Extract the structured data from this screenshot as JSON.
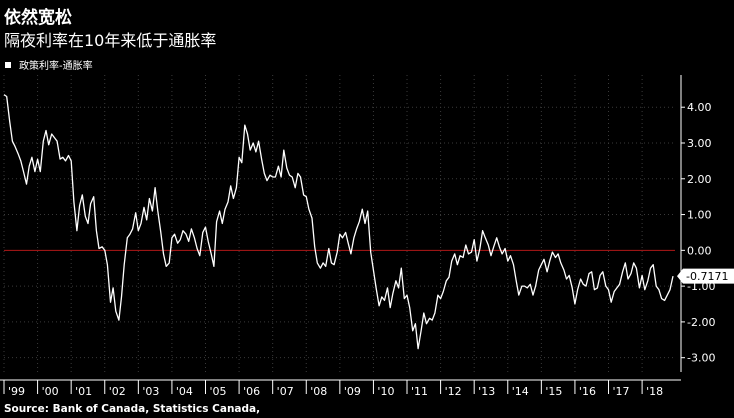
{
  "title": "依然宽松",
  "subtitle": "隔夜利率在10年来低于通胀率",
  "legend_label": "政策利率-通胀率",
  "source": "Source: Bank of Canada, Statistics Canada,",
  "colors": {
    "background": "#000000",
    "line": "#ffffff",
    "zero_line": "#b01818",
    "grid": "#3a3a3a",
    "label_box": "#ffffff"
  },
  "chart_data": {
    "type": "line",
    "title": "依然宽松",
    "subtitle": "隔夜利率在10年来低于通胀率",
    "xlabel": "",
    "ylabel": "",
    "x_ticks": [
      "'99",
      "'00",
      "'01",
      "'02",
      "'03",
      "'04",
      "'05",
      "'06",
      "'07",
      "'08",
      "'09",
      "'10",
      "'11",
      "'12",
      "'13",
      "'14",
      "'15",
      "'16",
      "'17",
      "'18"
    ],
    "y_ticks": [
      "4.00",
      "3.00",
      "2.00",
      "1.00",
      "0.00",
      "-1.00",
      "-2.00",
      "-3.00"
    ],
    "y_tick_values": [
      4,
      3,
      2,
      1,
      0,
      -1,
      -2,
      -3
    ],
    "ylim": [
      -3.4,
      4.9
    ],
    "xlim": [
      1999.0,
      2018.92
    ],
    "zero_line": true,
    "y_axis_position": "right",
    "last_value_label": "-0.7171",
    "series": [
      {
        "name": "政策利率-通胀率",
        "points": [
          [
            1999.0,
            4.35
          ],
          [
            1999.08,
            4.3
          ],
          [
            1999.17,
            3.6
          ],
          [
            1999.25,
            3.05
          ],
          [
            1999.33,
            2.9
          ],
          [
            1999.42,
            2.7
          ],
          [
            1999.5,
            2.5
          ],
          [
            1999.58,
            2.2
          ],
          [
            1999.67,
            1.85
          ],
          [
            1999.75,
            2.35
          ],
          [
            1999.83,
            2.6
          ],
          [
            1999.92,
            2.2
          ],
          [
            2000.0,
            2.55
          ],
          [
            2000.08,
            2.2
          ],
          [
            2000.17,
            3.05
          ],
          [
            2000.25,
            3.35
          ],
          [
            2000.33,
            2.95
          ],
          [
            2000.42,
            3.25
          ],
          [
            2000.5,
            3.15
          ],
          [
            2000.58,
            3.05
          ],
          [
            2000.67,
            2.55
          ],
          [
            2000.75,
            2.6
          ],
          [
            2000.83,
            2.5
          ],
          [
            2000.92,
            2.65
          ],
          [
            2001.0,
            2.5
          ],
          [
            2001.08,
            1.35
          ],
          [
            2001.17,
            0.55
          ],
          [
            2001.25,
            1.25
          ],
          [
            2001.33,
            1.55
          ],
          [
            2001.42,
            0.95
          ],
          [
            2001.5,
            0.75
          ],
          [
            2001.58,
            1.3
          ],
          [
            2001.67,
            1.5
          ],
          [
            2001.75,
            0.55
          ],
          [
            2001.83,
            0.05
          ],
          [
            2001.92,
            0.1
          ],
          [
            2002.0,
            0.0
          ],
          [
            2002.08,
            -0.4
          ],
          [
            2002.17,
            -1.45
          ],
          [
            2002.25,
            -1.05
          ],
          [
            2002.33,
            -1.7
          ],
          [
            2002.42,
            -1.95
          ],
          [
            2002.5,
            -1.3
          ],
          [
            2002.58,
            -0.4
          ],
          [
            2002.67,
            0.35
          ],
          [
            2002.75,
            0.45
          ],
          [
            2002.83,
            0.6
          ],
          [
            2002.92,
            1.05
          ],
          [
            2003.0,
            0.55
          ],
          [
            2003.08,
            0.75
          ],
          [
            2003.17,
            1.2
          ],
          [
            2003.25,
            0.85
          ],
          [
            2003.33,
            1.45
          ],
          [
            2003.42,
            1.1
          ],
          [
            2003.5,
            1.75
          ],
          [
            2003.58,
            1.1
          ],
          [
            2003.67,
            0.5
          ],
          [
            2003.75,
            -0.1
          ],
          [
            2003.83,
            -0.45
          ],
          [
            2003.92,
            -0.35
          ],
          [
            2004.0,
            0.35
          ],
          [
            2004.08,
            0.45
          ],
          [
            2004.17,
            0.2
          ],
          [
            2004.25,
            0.3
          ],
          [
            2004.33,
            0.55
          ],
          [
            2004.42,
            0.45
          ],
          [
            2004.5,
            0.25
          ],
          [
            2004.58,
            0.6
          ],
          [
            2004.67,
            0.35
          ],
          [
            2004.75,
            0.05
          ],
          [
            2004.83,
            -0.15
          ],
          [
            2004.92,
            0.5
          ],
          [
            2005.0,
            0.65
          ],
          [
            2005.08,
            0.25
          ],
          [
            2005.17,
            -0.1
          ],
          [
            2005.25,
            -0.45
          ],
          [
            2005.33,
            0.8
          ],
          [
            2005.42,
            1.1
          ],
          [
            2005.5,
            0.75
          ],
          [
            2005.58,
            1.15
          ],
          [
            2005.67,
            1.35
          ],
          [
            2005.75,
            1.8
          ],
          [
            2005.83,
            1.45
          ],
          [
            2005.92,
            1.75
          ],
          [
            2006.0,
            2.6
          ],
          [
            2006.08,
            2.45
          ],
          [
            2006.17,
            3.5
          ],
          [
            2006.25,
            3.25
          ],
          [
            2006.33,
            2.8
          ],
          [
            2006.42,
            3.0
          ],
          [
            2006.5,
            2.75
          ],
          [
            2006.58,
            3.05
          ],
          [
            2006.67,
            2.55
          ],
          [
            2006.75,
            2.15
          ],
          [
            2006.83,
            1.95
          ],
          [
            2006.92,
            2.1
          ],
          [
            2007.0,
            2.05
          ],
          [
            2007.08,
            2.05
          ],
          [
            2007.17,
            2.35
          ],
          [
            2007.25,
            2.05
          ],
          [
            2007.33,
            2.8
          ],
          [
            2007.42,
            2.3
          ],
          [
            2007.5,
            2.1
          ],
          [
            2007.58,
            2.05
          ],
          [
            2007.67,
            1.75
          ],
          [
            2007.75,
            2.15
          ],
          [
            2007.83,
            2.05
          ],
          [
            2007.92,
            1.55
          ],
          [
            2008.0,
            1.5
          ],
          [
            2008.08,
            1.15
          ],
          [
            2008.17,
            0.9
          ],
          [
            2008.25,
            0.1
          ],
          [
            2008.33,
            -0.35
          ],
          [
            2008.42,
            -0.5
          ],
          [
            2008.5,
            -0.35
          ],
          [
            2008.58,
            -0.45
          ],
          [
            2008.67,
            0.05
          ],
          [
            2008.75,
            -0.35
          ],
          [
            2008.83,
            -0.4
          ],
          [
            2008.92,
            -0.05
          ],
          [
            2009.0,
            0.45
          ],
          [
            2009.08,
            0.35
          ],
          [
            2009.17,
            0.5
          ],
          [
            2009.25,
            0.2
          ],
          [
            2009.33,
            -0.1
          ],
          [
            2009.42,
            0.35
          ],
          [
            2009.5,
            0.6
          ],
          [
            2009.58,
            0.8
          ],
          [
            2009.67,
            1.15
          ],
          [
            2009.75,
            0.75
          ],
          [
            2009.83,
            1.1
          ],
          [
            2009.92,
            -0.05
          ],
          [
            2010.0,
            -0.55
          ],
          [
            2010.08,
            -1.05
          ],
          [
            2010.17,
            -1.55
          ],
          [
            2010.25,
            -1.3
          ],
          [
            2010.33,
            -1.4
          ],
          [
            2010.42,
            -1.05
          ],
          [
            2010.5,
            -1.6
          ],
          [
            2010.58,
            -1.2
          ],
          [
            2010.67,
            -0.85
          ],
          [
            2010.75,
            -1.05
          ],
          [
            2010.83,
            -0.5
          ],
          [
            2010.92,
            -1.35
          ],
          [
            2011.0,
            -1.25
          ],
          [
            2011.08,
            -1.6
          ],
          [
            2011.17,
            -2.25
          ],
          [
            2011.25,
            -2.05
          ],
          [
            2011.33,
            -2.75
          ],
          [
            2011.42,
            -2.25
          ],
          [
            2011.5,
            -1.75
          ],
          [
            2011.58,
            -2.05
          ],
          [
            2011.67,
            -1.9
          ],
          [
            2011.75,
            -1.95
          ],
          [
            2011.83,
            -1.75
          ],
          [
            2011.92,
            -1.25
          ],
          [
            2012.0,
            -1.35
          ],
          [
            2012.08,
            -1.15
          ],
          [
            2012.17,
            -0.85
          ],
          [
            2012.25,
            -0.75
          ],
          [
            2012.33,
            -0.3
          ],
          [
            2012.42,
            -0.1
          ],
          [
            2012.5,
            -0.4
          ],
          [
            2012.58,
            -0.15
          ],
          [
            2012.67,
            -0.2
          ],
          [
            2012.75,
            0.15
          ],
          [
            2012.83,
            -0.1
          ],
          [
            2012.92,
            -0.05
          ],
          [
            2013.0,
            0.3
          ],
          [
            2013.08,
            -0.3
          ],
          [
            2013.17,
            0.05
          ],
          [
            2013.25,
            0.55
          ],
          [
            2013.33,
            0.35
          ],
          [
            2013.42,
            0.15
          ],
          [
            2013.5,
            -0.15
          ],
          [
            2013.58,
            0.1
          ],
          [
            2013.67,
            0.35
          ],
          [
            2013.75,
            0.1
          ],
          [
            2013.83,
            -0.1
          ],
          [
            2013.92,
            0.05
          ],
          [
            2014.0,
            -0.3
          ],
          [
            2014.08,
            -0.15
          ],
          [
            2014.17,
            -0.4
          ],
          [
            2014.25,
            -0.85
          ],
          [
            2014.33,
            -1.25
          ],
          [
            2014.42,
            -1.0
          ],
          [
            2014.5,
            -1.0
          ],
          [
            2014.58,
            -1.05
          ],
          [
            2014.67,
            -0.95
          ],
          [
            2014.75,
            -1.25
          ],
          [
            2014.83,
            -1.0
          ],
          [
            2014.92,
            -0.55
          ],
          [
            2015.0,
            -0.4
          ],
          [
            2015.08,
            -0.25
          ],
          [
            2015.17,
            -0.6
          ],
          [
            2015.25,
            -0.3
          ],
          [
            2015.33,
            -0.05
          ],
          [
            2015.42,
            -0.2
          ],
          [
            2015.5,
            -0.1
          ],
          [
            2015.58,
            -0.35
          ],
          [
            2015.67,
            -0.55
          ],
          [
            2015.75,
            -0.8
          ],
          [
            2015.83,
            -0.7
          ],
          [
            2015.92,
            -1.05
          ],
          [
            2016.0,
            -1.5
          ],
          [
            2016.08,
            -1.1
          ],
          [
            2016.17,
            -0.8
          ],
          [
            2016.25,
            -0.95
          ],
          [
            2016.33,
            -1.0
          ],
          [
            2016.42,
            -0.65
          ],
          [
            2016.5,
            -0.6
          ],
          [
            2016.58,
            -1.1
          ],
          [
            2016.67,
            -1.05
          ],
          [
            2016.75,
            -0.7
          ],
          [
            2016.83,
            -0.6
          ],
          [
            2016.92,
            -1.0
          ],
          [
            2017.0,
            -1.1
          ],
          [
            2017.08,
            -1.45
          ],
          [
            2017.17,
            -1.15
          ],
          [
            2017.25,
            -1.05
          ],
          [
            2017.33,
            -0.95
          ],
          [
            2017.42,
            -0.6
          ],
          [
            2017.5,
            -0.35
          ],
          [
            2017.58,
            -0.8
          ],
          [
            2017.67,
            -0.65
          ],
          [
            2017.75,
            -0.35
          ],
          [
            2017.83,
            -0.5
          ],
          [
            2017.92,
            -1.05
          ],
          [
            2018.0,
            -0.7
          ],
          [
            2018.08,
            -1.1
          ],
          [
            2018.17,
            -0.85
          ],
          [
            2018.25,
            -0.5
          ],
          [
            2018.33,
            -0.4
          ],
          [
            2018.42,
            -1.0
          ],
          [
            2018.5,
            -1.1
          ],
          [
            2018.58,
            -1.35
          ],
          [
            2018.67,
            -1.4
          ],
          [
            2018.75,
            -1.25
          ],
          [
            2018.83,
            -1.1
          ],
          [
            2018.92,
            -0.72
          ]
        ]
      }
    ]
  }
}
